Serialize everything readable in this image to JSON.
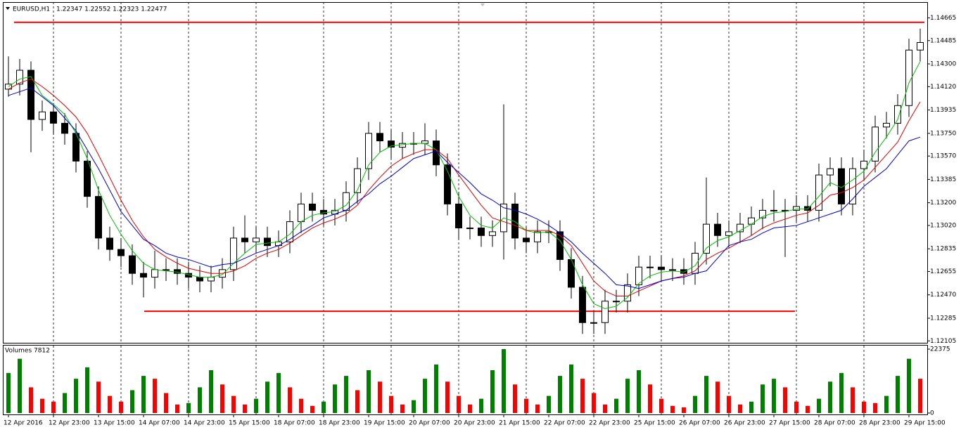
{
  "chart_data": {
    "type": "candlestick",
    "symbol": "EURUSD,H1",
    "quote": "1.22347 1.22552 1.22323 1.22477",
    "categories": [
      "12 Apr 2016",
      null,
      null,
      null,
      "12 Apr 23:00",
      null,
      null,
      null,
      "13 Apr 15:00",
      null,
      null,
      null,
      "14 Apr 07:00",
      null,
      null,
      null,
      "14 Apr 23:00",
      null,
      null,
      null,
      "15 Apr 15:00",
      null,
      null,
      null,
      "18 Apr 07:00",
      null,
      null,
      null,
      "18 Apr 23:00",
      null,
      null,
      null,
      "19 Apr 15:00",
      null,
      null,
      null,
      "20 Apr 07:00",
      null,
      null,
      null,
      "20 Apr 23:00",
      null,
      null,
      null,
      "21 Apr 15:00",
      null,
      null,
      null,
      "22 Apr 07:00",
      null,
      null,
      null,
      "22 Apr 23:00",
      null,
      null,
      null,
      "25 Apr 15:00",
      null,
      null,
      null,
      "26 Apr 07:00",
      null,
      null,
      null,
      "26 Apr 23:00",
      null,
      null,
      null,
      "27 Apr 15:00",
      null,
      null,
      null,
      "28 Apr 07:00",
      null,
      null,
      null,
      "28 Apr 23:00",
      null,
      null,
      null,
      "29 Apr 15:00",
      null
    ],
    "open": [
      1.141,
      1.1414,
      1.1425,
      1.1386,
      1.1392,
      1.1383,
      1.1375,
      1.1353,
      1.1325,
      1.1292,
      1.1283,
      1.1278,
      1.1264,
      1.1261,
      1.1267,
      1.1267,
      1.1264,
      1.1261,
      1.1258,
      1.1261,
      1.1267,
      1.1292,
      1.1289,
      1.1292,
      1.1286,
      1.1289,
      1.1305,
      1.1319,
      1.1314,
      1.1311,
      1.1314,
      1.1328,
      1.1347,
      1.1375,
      1.1369,
      1.1364,
      1.1367,
      1.1367,
      1.1369,
      1.135,
      1.1319,
      1.13,
      1.13,
      1.1294,
      1.1297,
      1.1319,
      1.1292,
      1.1289,
      1.1297,
      1.1297,
      1.1275,
      1.1253,
      1.1225,
      1.1225,
      1.1242,
      1.1242,
      1.1255,
      1.1269,
      1.1269,
      1.1267,
      1.1267,
      1.1264,
      1.128,
      1.1303,
      1.1294,
      1.1297,
      1.1303,
      1.1308,
      1.1314,
      1.1314,
      1.1314,
      1.1317,
      1.1314,
      1.1342,
      1.1347,
      1.1319,
      1.1347,
      1.1353,
      1.138,
      1.1383,
      1.1397,
      1.1441
    ],
    "high": [
      1.1436,
      1.1434,
      1.1432,
      1.1401,
      1.1399,
      1.1391,
      1.1383,
      1.1361,
      1.1333,
      1.1301,
      1.1292,
      1.1287,
      1.1273,
      1.1282,
      1.1276,
      1.1276,
      1.1273,
      1.127,
      1.127,
      1.1276,
      1.1301,
      1.131,
      1.1301,
      1.1301,
      1.1298,
      1.1314,
      1.1328,
      1.1328,
      1.1323,
      1.1323,
      1.1337,
      1.1356,
      1.1384,
      1.1384,
      1.1378,
      1.1376,
      1.1376,
      1.1383,
      1.1378,
      1.1359,
      1.1328,
      1.1309,
      1.1309,
      1.1306,
      1.1398,
      1.1328,
      1.1301,
      1.1306,
      1.1306,
      1.1306,
      1.1284,
      1.1262,
      1.1234,
      1.1251,
      1.1251,
      1.1264,
      1.1278,
      1.1278,
      1.1278,
      1.1276,
      1.1276,
      1.1289,
      1.134,
      1.1312,
      1.1306,
      1.1312,
      1.1317,
      1.1323,
      1.133,
      1.1323,
      1.1326,
      1.1326,
      1.1351,
      1.1356,
      1.1356,
      1.1356,
      1.1362,
      1.1389,
      1.1392,
      1.1406,
      1.145,
      1.1458
    ],
    "low": [
      1.1404,
      1.1405,
      1.136,
      1.1377,
      1.1374,
      1.1366,
      1.1344,
      1.1316,
      1.1283,
      1.1274,
      1.1269,
      1.1255,
      1.1245,
      1.1252,
      1.1258,
      1.1255,
      1.1252,
      1.1249,
      1.1249,
      1.1252,
      1.1258,
      1.128,
      1.128,
      1.1277,
      1.1277,
      1.128,
      1.1296,
      1.1305,
      1.1302,
      1.1302,
      1.1305,
      1.1319,
      1.1338,
      1.136,
      1.1355,
      1.1355,
      1.1358,
      1.1358,
      1.1341,
      1.131,
      1.1291,
      1.1291,
      1.1285,
      1.1285,
      1.1275,
      1.1283,
      1.128,
      1.128,
      1.1288,
      1.1266,
      1.1244,
      1.1216,
      1.1216,
      1.1216,
      1.1233,
      1.1233,
      1.1246,
      1.126,
      1.1258,
      1.1258,
      1.1255,
      1.1255,
      1.1271,
      1.1285,
      1.1285,
      1.1288,
      1.1294,
      1.1299,
      1.1305,
      1.1277,
      1.1305,
      1.1305,
      1.1305,
      1.1333,
      1.131,
      1.131,
      1.1338,
      1.1344,
      1.1371,
      1.1374,
      1.1388,
      1.1432
    ],
    "close": [
      1.1414,
      1.1425,
      1.1386,
      1.1392,
      1.1383,
      1.1375,
      1.1353,
      1.1325,
      1.1292,
      1.1283,
      1.1278,
      1.1264,
      1.1261,
      1.1267,
      1.1267,
      1.1264,
      1.1261,
      1.1258,
      1.1261,
      1.1267,
      1.1292,
      1.1289,
      1.1292,
      1.1286,
      1.1289,
      1.1305,
      1.1319,
      1.1314,
      1.1311,
      1.1314,
      1.1328,
      1.1347,
      1.1375,
      1.1369,
      1.1364,
      1.1367,
      1.1367,
      1.1369,
      1.135,
      1.1319,
      1.13,
      1.13,
      1.1294,
      1.1297,
      1.1319,
      1.1292,
      1.1289,
      1.1297,
      1.1297,
      1.1275,
      1.1253,
      1.1225,
      1.1225,
      1.1242,
      1.1242,
      1.1255,
      1.1269,
      1.1269,
      1.1267,
      1.1267,
      1.1264,
      1.128,
      1.1303,
      1.1294,
      1.1297,
      1.1303,
      1.1308,
      1.1314,
      1.1314,
      1.1314,
      1.1317,
      1.1314,
      1.1342,
      1.1347,
      1.1319,
      1.1347,
      1.1353,
      1.138,
      1.1383,
      1.1397,
      1.1441,
      1.1447
    ],
    "series": [
      {
        "color": "#00c000",
        "values": [
          1.1412,
          1.1418,
          1.142,
          1.1405,
          1.1398,
          1.139,
          1.1375,
          1.1355,
          1.133,
          1.131,
          1.1295,
          1.1282,
          1.1272,
          1.1267,
          1.1266,
          1.1265,
          1.1263,
          1.1261,
          1.1261,
          1.1263,
          1.1272,
          1.128,
          1.1287,
          1.1288,
          1.1289,
          1.1295,
          1.1305,
          1.131,
          1.1312,
          1.1313,
          1.1318,
          1.133,
          1.135,
          1.136,
          1.1365,
          1.1366,
          1.1367,
          1.1367,
          1.1362,
          1.1345,
          1.1325,
          1.131,
          1.1302,
          1.13,
          1.1308,
          1.1305,
          1.1298,
          1.1296,
          1.1297,
          1.129,
          1.1275,
          1.1255,
          1.124,
          1.1236,
          1.1238,
          1.1245,
          1.1256,
          1.1262,
          1.1265,
          1.1266,
          1.1265,
          1.127,
          1.1284,
          1.129,
          1.1293,
          1.1298,
          1.1303,
          1.1309,
          1.1312,
          1.1313,
          1.1315,
          1.1315,
          1.1325,
          1.1336,
          1.1332,
          1.1338,
          1.1345,
          1.136,
          1.1372,
          1.1386,
          1.1415,
          1.1432
        ]
      },
      {
        "color": "#e00000",
        "values": [
          1.141,
          1.1415,
          1.1418,
          1.1412,
          1.1405,
          1.1397,
          1.1388,
          1.1375,
          1.1358,
          1.134,
          1.1322,
          1.1306,
          1.1293,
          1.1283,
          1.1277,
          1.1272,
          1.1268,
          1.1266,
          1.1264,
          1.1264,
          1.1266,
          1.127,
          1.1276,
          1.128,
          1.1283,
          1.1288,
          1.1294,
          1.13,
          1.1304,
          1.1307,
          1.1311,
          1.1318,
          1.133,
          1.134,
          1.1349,
          1.1355,
          1.1359,
          1.1362,
          1.1362,
          1.1355,
          1.1342,
          1.133,
          1.1318,
          1.1308,
          1.1305,
          1.1302,
          1.1298,
          1.1298,
          1.1298,
          1.1294,
          1.1286,
          1.1272,
          1.1258,
          1.125,
          1.1246,
          1.1246,
          1.125,
          1.1254,
          1.1258,
          1.126,
          1.1262,
          1.1266,
          1.1275,
          1.128,
          1.1284,
          1.1289,
          1.1294,
          1.13,
          1.1304,
          1.1307,
          1.131,
          1.1312,
          1.1318,
          1.1326,
          1.1328,
          1.1332,
          1.1338,
          1.1348,
          1.1358,
          1.1368,
          1.1385,
          1.14
        ]
      },
      {
        "color": "#0000d0",
        "values": [
          1.1405,
          1.1408,
          1.1411,
          1.1404,
          1.1397,
          1.1387,
          1.1377,
          1.1362,
          1.1347,
          1.133,
          1.1313,
          1.1302,
          1.1291,
          1.1286,
          1.128,
          1.1277,
          1.1275,
          1.1272,
          1.1269,
          1.1271,
          1.1272,
          1.1276,
          1.128,
          1.1283,
          1.1286,
          1.1291,
          1.1297,
          1.1302,
          1.1308,
          1.1311,
          1.1314,
          1.1321,
          1.1327,
          1.1335,
          1.1341,
          1.1348,
          1.1355,
          1.1358,
          1.1361,
          1.1352,
          1.1344,
          1.1336,
          1.1327,
          1.1322,
          1.1316,
          1.1314,
          1.1311,
          1.1307,
          1.1302,
          1.1296,
          1.1289,
          1.128,
          1.1272,
          1.1264,
          1.1255,
          1.1254,
          1.1252,
          1.1255,
          1.1258,
          1.126,
          1.1261,
          1.1264,
          1.1266,
          1.1276,
          1.1286,
          1.1289,
          1.1291,
          1.1296,
          1.13,
          1.1301,
          1.1302,
          1.1305,
          1.1308,
          1.1311,
          1.1314,
          1.1323,
          1.1333,
          1.134,
          1.1347,
          1.1358,
          1.1369,
          1.1372
        ]
      }
    ],
    "hlines": [
      {
        "value": 1.1463,
        "color": "#ff0000"
      },
      {
        "value": 1.1234,
        "color": "#ff0000"
      }
    ],
    "ylim": [
      1.1209,
      1.1479
    ],
    "yticks": [
      1.14665,
      1.14485,
      {
        "value": 1.143,
        "label": "1.14300"
      },
      {
        "value": 1.1412,
        "label": "1.14120"
      },
      1.13935,
      {
        "value": 1.1375,
        "label": "1.13750"
      },
      {
        "value": 1.1357,
        "label": "1.13570"
      },
      1.13385,
      {
        "value": 1.132,
        "label": "1.13200"
      },
      {
        "value": 1.1302,
        "label": "1.13020"
      },
      1.12835,
      1.12655,
      {
        "value": 1.1247,
        "label": "1.12470"
      },
      1.12285,
      1.12105
    ],
    "grid": true,
    "volume": {
      "title": "Volumes 7812",
      "values": [
        14000,
        19000,
        9000,
        5000,
        4000,
        7000,
        12000,
        16000,
        11000,
        6000,
        4000,
        8000,
        13000,
        12000,
        7000,
        3000,
        3500,
        9000,
        15000,
        10000,
        6000,
        3000,
        5000,
        11000,
        14000,
        9000,
        5000,
        2500,
        4000,
        10000,
        13000,
        8000,
        15000,
        11000,
        6000,
        3000,
        4500,
        12000,
        17000,
        11000,
        6000,
        3000,
        5000,
        15000,
        22375,
        10000,
        5000,
        3000,
        6000,
        13000,
        17000,
        12000,
        7000,
        3000,
        5000,
        12000,
        15000,
        10000,
        5000,
        2500,
        2000,
        6000,
        13000,
        11000,
        6000,
        3000,
        4000,
        10000,
        12000,
        9000,
        4000,
        2500,
        5000,
        11000,
        14000,
        9000,
        4000,
        3500,
        6000,
        13000,
        19000,
        12000
      ],
      "up_color": "#008000",
      "down_color": "#ff0000",
      "ylim": [
        0,
        22375
      ],
      "yticks": [
        0,
        22375
      ]
    }
  }
}
